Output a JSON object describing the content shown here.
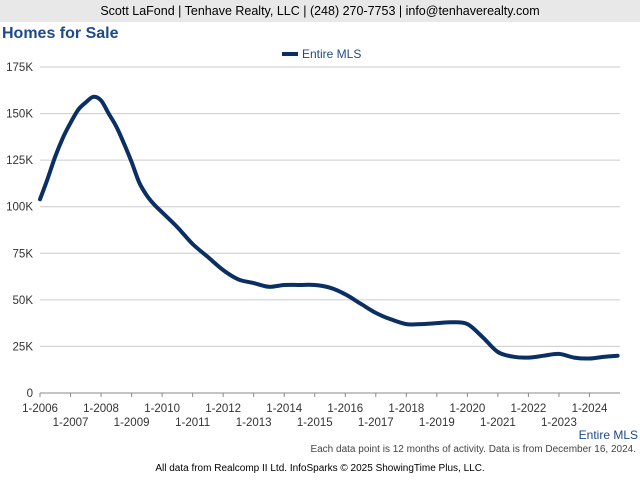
{
  "header": {
    "contact": "Scott LaFond | Tenhave Realty, LLC | (248) 270-7753 | info@tenhaverealty.com"
  },
  "page_title": "Homes for Sale",
  "footer": {
    "note": "Each data point is 12 months of activity. Data is from December 16, 2024.",
    "credits": "All data from Realcomp II Ltd. InfoSparks © 2025 ShowingTime Plus, LLC.",
    "legend_label": "Entire MLS"
  },
  "colors": {
    "series": "#0b2f63",
    "title": "#1f4a8a",
    "grid": "#cccccc"
  },
  "chart_data": {
    "type": "line",
    "title": "Homes for Sale",
    "legend": [
      "Entire MLS"
    ],
    "legend_position": "top-center",
    "grid": true,
    "ylim": [
      0,
      175000
    ],
    "yticks": [
      0,
      25000,
      50000,
      75000,
      100000,
      125000,
      150000,
      175000
    ],
    "ytick_labels": [
      "0",
      "25K",
      "50K",
      "75K",
      "100K",
      "125K",
      "150K",
      "175K"
    ],
    "xlim": [
      2006,
      2025
    ],
    "xticks_top": [
      2006,
      2008,
      2010,
      2012,
      2014,
      2016,
      2018,
      2020,
      2022,
      2024
    ],
    "xtick_labels_top": [
      "1-2006",
      "1-2008",
      "1-2010",
      "1-2012",
      "1-2014",
      "1-2016",
      "1-2018",
      "1-2020",
      "1-2022",
      "1-2024"
    ],
    "xticks_bottom": [
      2007,
      2009,
      2011,
      2013,
      2015,
      2017,
      2019,
      2021,
      2023
    ],
    "xtick_labels_bottom": [
      "1-2007",
      "1-2009",
      "1-2011",
      "1-2013",
      "1-2015",
      "1-2017",
      "1-2019",
      "1-2021",
      "1-2023"
    ],
    "series": [
      {
        "name": "Entire MLS",
        "x": [
          2006.0,
          2006.25,
          2006.5,
          2006.75,
          2007.0,
          2007.25,
          2007.5,
          2007.75,
          2008.0,
          2008.25,
          2008.5,
          2008.75,
          2009.0,
          2009.25,
          2009.5,
          2009.75,
          2010.0,
          2010.5,
          2011.0,
          2011.5,
          2012.0,
          2012.5,
          2013.0,
          2013.5,
          2014.0,
          2014.5,
          2015.0,
          2015.5,
          2016.0,
          2016.5,
          2017.0,
          2017.5,
          2018.0,
          2018.5,
          2019.0,
          2019.5,
          2020.0,
          2020.5,
          2021.0,
          2021.5,
          2022.0,
          2022.5,
          2023.0,
          2023.5,
          2024.0,
          2024.5,
          2024.92
        ],
        "values": [
          104000,
          115000,
          127000,
          137000,
          145000,
          152000,
          156000,
          159000,
          157000,
          150000,
          143000,
          134000,
          124000,
          113000,
          106000,
          101000,
          97000,
          89000,
          80000,
          73000,
          66000,
          61000,
          59000,
          57000,
          58000,
          58000,
          58000,
          56500,
          53000,
          48000,
          43000,
          39500,
          37000,
          37000,
          37500,
          38000,
          37000,
          30000,
          22000,
          19500,
          19000,
          20000,
          21000,
          19000,
          18500,
          19500,
          20000
        ]
      }
    ]
  }
}
